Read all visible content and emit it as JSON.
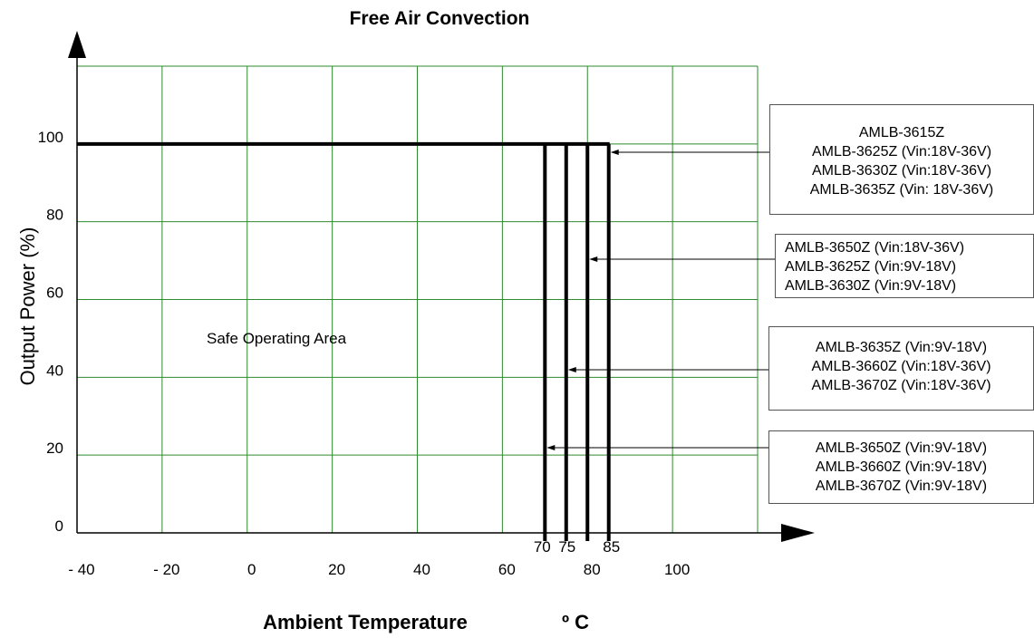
{
  "chart_data": {
    "type": "line",
    "title": "Free Air Convection",
    "xlabel": "Ambient Temperature",
    "xunit": "º C",
    "ylabel": "Output Power (%)",
    "x_tick_labels": [
      "- 40",
      "- 20",
      "0",
      "20",
      "40",
      "60",
      "80",
      "100"
    ],
    "y_tick_labels": [
      "0",
      "20",
      "40",
      "60",
      "80",
      "100"
    ],
    "xlim": [
      -40,
      120
    ],
    "ylim": [
      0,
      120
    ],
    "grid": true,
    "grid_color": "#2e8b2e",
    "area_annotation": "Safe Operating Area",
    "max_output_percent": 100,
    "cutoff_temperatures": [
      70,
      75,
      80,
      85
    ],
    "cutoff_labels": [
      "70",
      "75",
      "85"
    ],
    "series": [
      {
        "lines": [
          "AMLB-3615Z",
          "AMLB-3625Z (Vin:18V-36V)",
          "AMLB-3630Z (Vin:18V-36V)",
          "AMLB-3635Z (Vin: 18V-36V)"
        ],
        "points": [
          [
            -40,
            100
          ],
          [
            85,
            100
          ],
          [
            85,
            0
          ]
        ]
      },
      {
        "lines": [
          "AMLB-3650Z (Vin:18V-36V)",
          "AMLB-3625Z (Vin:9V-18V)",
          "AMLB-3630Z (Vin:9V-18V)"
        ],
        "points": [
          [
            -40,
            100
          ],
          [
            80,
            100
          ],
          [
            80,
            0
          ]
        ]
      },
      {
        "lines": [
          "AMLB-3635Z (Vin:9V-18V)",
          "AMLB-3660Z (Vin:18V-36V)",
          "AMLB-3670Z (Vin:18V-36V)"
        ],
        "points": [
          [
            -40,
            100
          ],
          [
            75,
            100
          ],
          [
            75,
            0
          ]
        ]
      },
      {
        "lines": [
          "AMLB-3650Z (Vin:9V-18V)",
          "AMLB-3660Z (Vin:9V-18V)",
          "AMLB-3670Z (Vin:9V-18V)"
        ],
        "points": [
          [
            -40,
            100
          ],
          [
            70,
            100
          ],
          [
            70,
            0
          ]
        ]
      }
    ],
    "arrow_targets": [
      [
        85,
        100
      ],
      [
        80,
        70
      ],
      [
        75,
        42
      ],
      [
        70,
        22
      ]
    ]
  }
}
